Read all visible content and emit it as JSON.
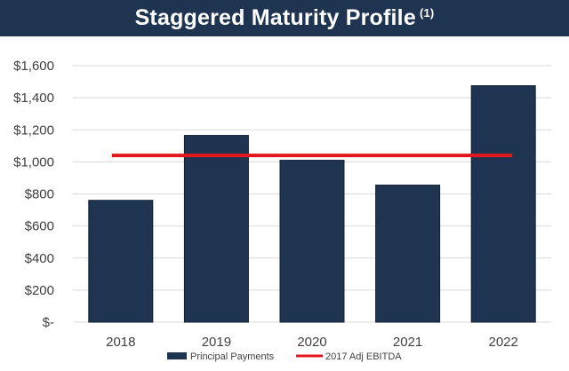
{
  "title": "Staggered Maturity Profile",
  "title_footnote": "(1)",
  "colors": {
    "header_bg": "#1f3450",
    "bar": "#1f3450",
    "line": "#e3161e",
    "grid": "#d9d9d9"
  },
  "chart_data": {
    "type": "bar",
    "categories": [
      "2018",
      "2019",
      "2020",
      "2021",
      "2022"
    ],
    "y_tick_labels": [
      "$-",
      "$200",
      "$400",
      "$600",
      "$800",
      "$1,000",
      "$1,200",
      "$1,400",
      "$1,600"
    ],
    "ylim": [
      0,
      1600
    ],
    "grid": true,
    "legend_position": "bottom",
    "series": [
      {
        "name": "Principal Payments",
        "kind": "bar",
        "values": [
          760,
          1165,
          1010,
          855,
          1475
        ]
      },
      {
        "name": "2017 Adj EBITDA",
        "kind": "line",
        "values": [
          1040,
          1040,
          1040,
          1040,
          1040
        ]
      }
    ]
  }
}
